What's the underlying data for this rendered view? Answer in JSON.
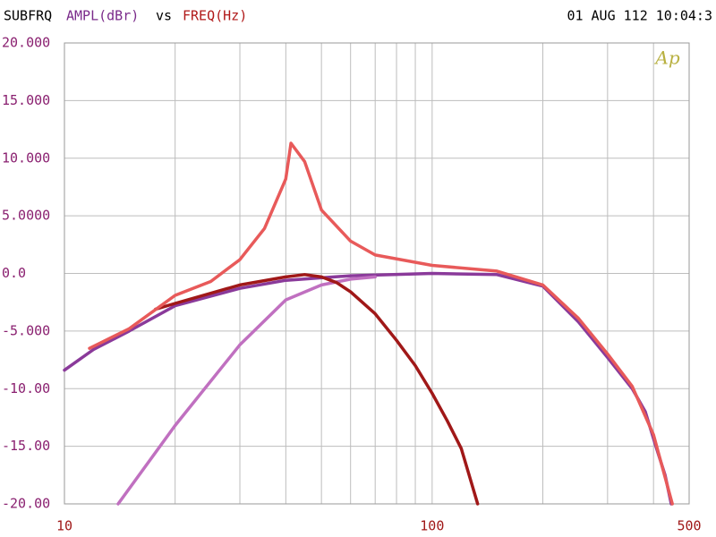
{
  "chart_data": {
    "type": "line",
    "header": {
      "left": "SUBFRQ",
      "ylabel": "AMPL(dBr)",
      "vs": "vs",
      "xlabel": "FREQ(Hz)",
      "stamp": "01 AUG 112 10:04:3",
      "logo": "Ap"
    },
    "xscale": "log",
    "xlim": [
      10,
      500
    ],
    "xticks": [
      10,
      100,
      500
    ],
    "xgrid": [
      20,
      30,
      40,
      50,
      60,
      70,
      80,
      90,
      200,
      300,
      400
    ],
    "ylim": [
      -20,
      20
    ],
    "yticks": [
      {
        "value": 20,
        "label": "20.000"
      },
      {
        "value": 15,
        "label": "15.000"
      },
      {
        "value": 10,
        "label": "10.000"
      },
      {
        "value": 5,
        "label": "5.0000"
      },
      {
        "value": 0,
        "label": "0.0"
      },
      {
        "value": -5,
        "label": "-5.000"
      },
      {
        "value": -10,
        "label": "-10.00"
      },
      {
        "value": -15,
        "label": "-15.00"
      },
      {
        "value": -20,
        "label": "-20.00"
      }
    ],
    "grid": true,
    "series": [
      {
        "color": "#8a3a9a",
        "x": [
          10,
          12,
          15,
          20,
          30,
          40,
          60,
          100,
          150,
          200,
          250,
          300,
          350,
          380,
          406,
          430,
          447
        ],
        "values": [
          -8.4,
          -6.6,
          -5.0,
          -2.8,
          -1.3,
          -0.6,
          -0.2,
          0.0,
          -0.1,
          -1.1,
          -4.2,
          -7.3,
          -10,
          -12,
          -15,
          -17.5,
          -20
        ]
      },
      {
        "color": "#c070c0",
        "x": [
          14,
          20,
          30,
          40,
          50,
          60,
          70
        ],
        "values": [
          -20,
          -13.2,
          -6.2,
          -2.3,
          -1.0,
          -0.5,
          -0.3
        ]
      },
      {
        "color": "#a01818",
        "x": [
          17.7,
          20,
          30,
          40,
          45,
          50,
          55,
          60,
          70,
          80,
          90,
          100,
          110,
          120,
          133
        ],
        "values": [
          -3.1,
          -2.6,
          -1.0,
          -0.3,
          -0.1,
          -0.3,
          -0.8,
          -1.6,
          -3.5,
          -5.8,
          -8.0,
          -10.4,
          -12.8,
          -15.2,
          -20
        ]
      },
      {
        "color": "#e85a5a",
        "x": [
          11.7,
          15,
          20,
          25,
          30,
          35,
          40,
          41.3,
          45,
          50,
          60,
          70,
          100,
          150,
          200,
          250,
          300,
          350,
          400,
          450
        ],
        "values": [
          -6.5,
          -4.8,
          -1.9,
          -0.7,
          1.2,
          3.9,
          8.2,
          11.3,
          9.7,
          5.5,
          2.8,
          1.6,
          0.7,
          0.2,
          -1.0,
          -3.9,
          -7.0,
          -9.8,
          -14,
          -20
        ]
      }
    ]
  }
}
